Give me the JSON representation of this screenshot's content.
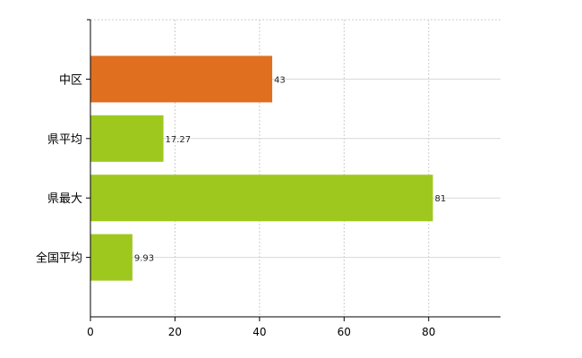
{
  "chart_data": {
    "type": "bar",
    "orientation": "horizontal",
    "categories": [
      "中区",
      "県平均",
      "県最大",
      "全国平均"
    ],
    "values": [
      43,
      17.27,
      81,
      9.93
    ],
    "value_labels": [
      "43",
      "17.27",
      "81",
      "9.93"
    ],
    "bar_colors": [
      "#e07020",
      "#9ec81e",
      "#9ec81e",
      "#9ec81e"
    ],
    "xlim": [
      0,
      97
    ],
    "xticks": [
      0,
      20,
      40,
      60,
      80
    ],
    "xtick_labels": [
      "0",
      "20",
      "40",
      "60",
      "80"
    ],
    "grid": true,
    "title": "",
    "xlabel": "",
    "ylabel": ""
  }
}
